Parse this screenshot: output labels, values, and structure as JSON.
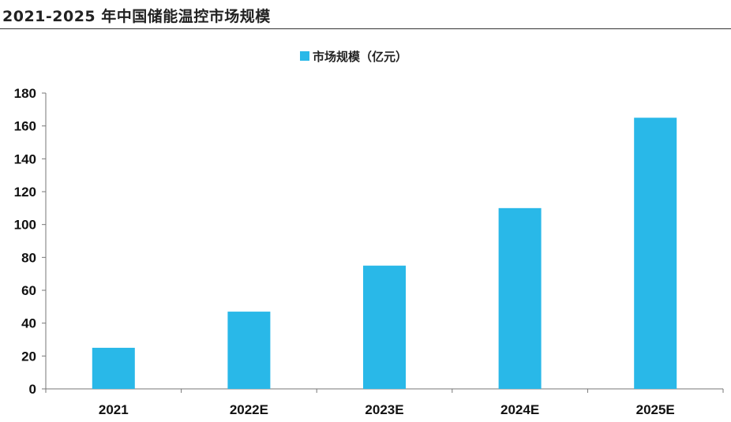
{
  "chart_data": {
    "type": "bar",
    "title": "2021-2025 年中国储能温控市场规模",
    "categories": [
      "2021",
      "2022E",
      "2023E",
      "2024E",
      "2025E"
    ],
    "series": [
      {
        "name": "市场规模（亿元）",
        "values": [
          25,
          47,
          75,
          110,
          165
        ]
      }
    ],
    "ylim": [
      0,
      180
    ],
    "yticks": [
      "0",
      "20",
      "40",
      "60",
      "80",
      "100",
      "120",
      "140",
      "160",
      "180"
    ],
    "grid": false,
    "legend_position": "top-center",
    "colors": {
      "bar": "#29b8e8",
      "axis": "#777777",
      "text": "#111111"
    }
  }
}
